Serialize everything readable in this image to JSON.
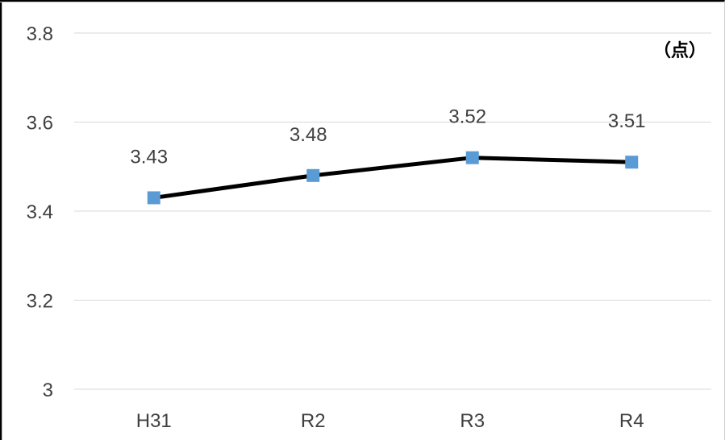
{
  "chart_data": {
    "type": "line",
    "categories": [
      "H31",
      "R2",
      "R3",
      "R4"
    ],
    "series": [
      {
        "values": [
          3.43,
          3.48,
          3.52,
          3.51
        ]
      }
    ],
    "data_labels": [
      "3.43",
      "3.48",
      "3.52",
      "3.51"
    ],
    "y_ticks": [
      3,
      3.2,
      3.4,
      3.6,
      3.8
    ],
    "y_tick_labels": [
      "3",
      "3.2",
      "3.4",
      "3.6",
      "3.8"
    ],
    "ylim": [
      3,
      3.8
    ],
    "unit_label": "（点）",
    "grid": true,
    "legend": "none",
    "colors": {
      "line": "#000000",
      "marker": "#5b9bd5",
      "grid": "#d9d9d9",
      "text": "#404040"
    },
    "marker_shape": "square"
  }
}
